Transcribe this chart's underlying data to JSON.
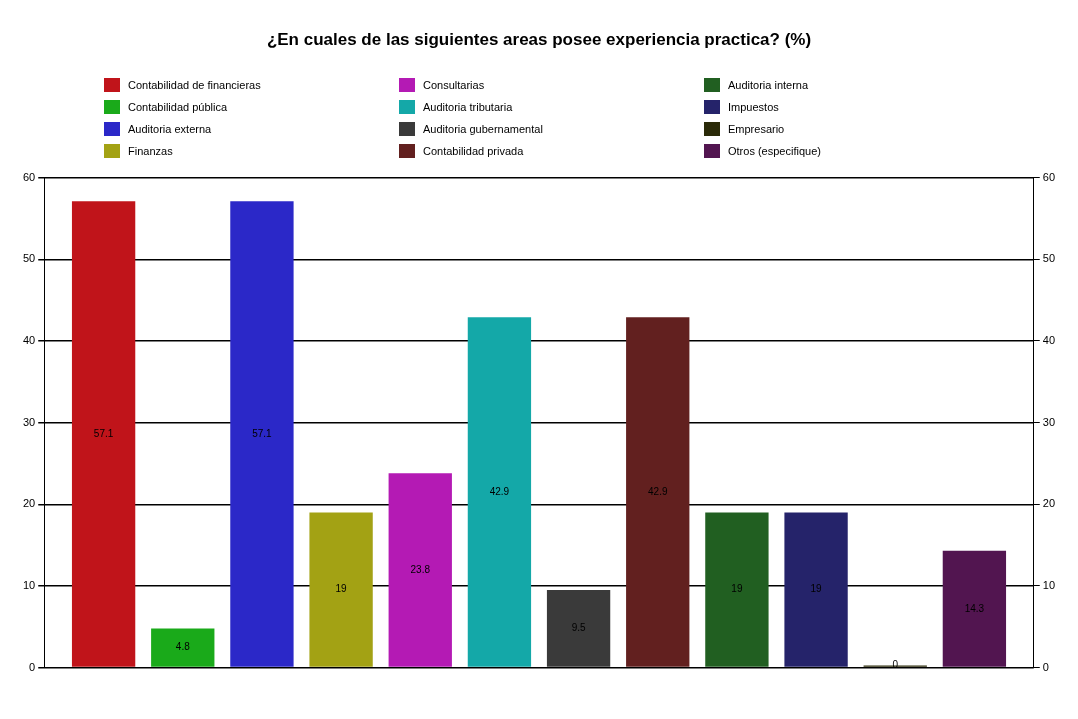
{
  "chart_data": {
    "type": "bar",
    "title": "¿En cuales de las siguientes areas posee experiencia practica? (%)",
    "categories": [
      null
    ],
    "series": [
      {
        "name": "Contabilidad de financieras",
        "color": "#c0141a",
        "values": [
          57.1
        ]
      },
      {
        "name": "Contabilidad pública",
        "color": "#1aaa1a",
        "values": [
          4.8
        ]
      },
      {
        "name": "Auditoria externa",
        "color": "#2b28c8",
        "values": [
          57.1
        ]
      },
      {
        "name": "Finanzas",
        "color": "#a3a214",
        "values": [
          19
        ]
      },
      {
        "name": "Consultarias",
        "color": "#b41ab4",
        "values": [
          23.8
        ]
      },
      {
        "name": "Auditoria tributaria",
        "color": "#14a8a8",
        "values": [
          42.9
        ]
      },
      {
        "name": "Auditoria gubernamental",
        "color": "#3a3a3a",
        "values": [
          9.5
        ]
      },
      {
        "name": "Contabilidad privada",
        "color": "#62201f",
        "values": [
          42.9
        ]
      },
      {
        "name": "Auditoria interna",
        "color": "#215f21",
        "values": [
          19
        ]
      },
      {
        "name": "Impuestos",
        "color": "#25236a",
        "values": [
          19
        ]
      },
      {
        "name": "Empresario",
        "color": "#2a2a08",
        "values": [
          0
        ]
      },
      {
        "name": "Otros (especifique)",
        "color": "#521550",
        "values": [
          14.3
        ]
      }
    ],
    "ylim": [
      0,
      60
    ],
    "yticks": [
      0,
      10,
      20,
      30,
      40,
      50,
      60
    ],
    "y2lim": [
      0,
      60
    ],
    "y2ticks": [
      0,
      10,
      20,
      30,
      40,
      50,
      60
    ],
    "grid": "y",
    "legend": "top",
    "data_labels": true
  }
}
